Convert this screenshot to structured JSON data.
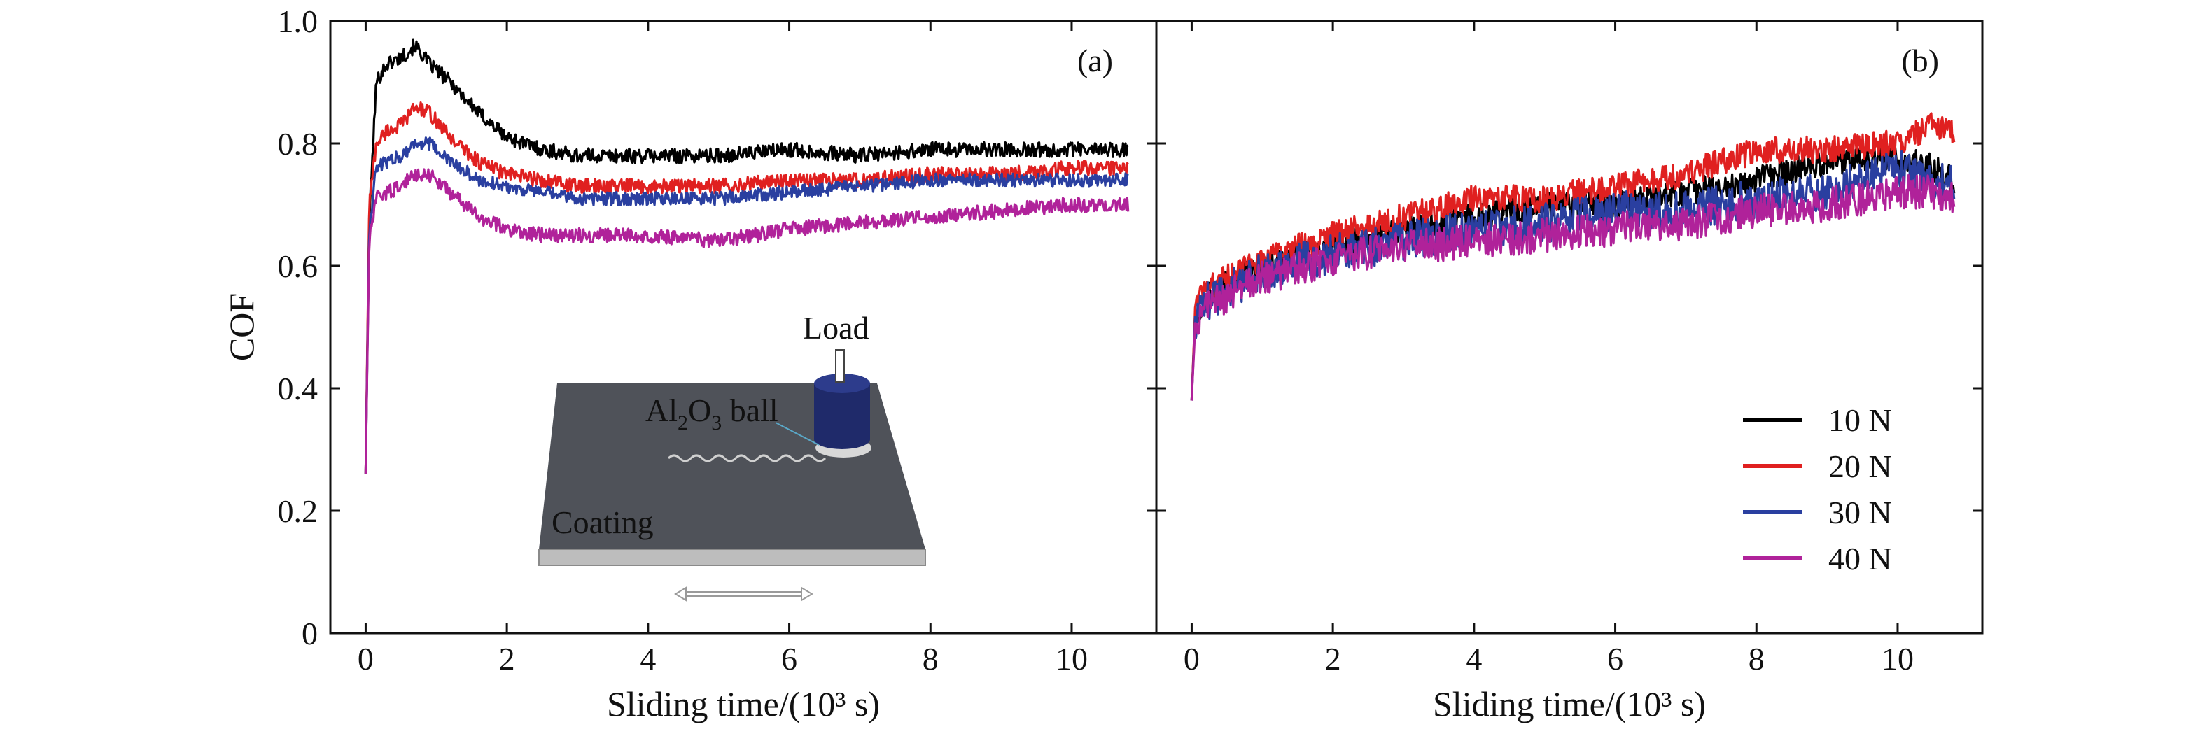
{
  "chart_data": [
    {
      "type": "line",
      "panel_label": "(a)",
      "xlabel": "Sliding time/(10³ s)",
      "ylabel": "COF",
      "xlim": [
        -0.5,
        11.2
      ],
      "ylim": [
        0,
        1.0
      ],
      "xticks": [
        0,
        2,
        4,
        6,
        8,
        10
      ],
      "yticks": [
        0,
        0.2,
        0.4,
        0.6,
        0.8,
        1.0
      ],
      "ytick_labels": [
        "0",
        "0.2",
        "0.4",
        "0.6",
        "0.8",
        "1.0"
      ],
      "grid": false,
      "series": [
        {
          "name": "10 N",
          "color": "#000000",
          "noise": 0.012,
          "x": [
            0,
            0.05,
            0.15,
            0.3,
            0.5,
            0.7,
            0.9,
            1.2,
            1.6,
            2.0,
            2.5,
            3,
            4,
            5,
            6,
            7,
            8,
            9,
            10,
            10.8
          ],
          "y": [
            0.26,
            0.67,
            0.9,
            0.93,
            0.94,
            0.96,
            0.93,
            0.9,
            0.85,
            0.81,
            0.79,
            0.78,
            0.78,
            0.78,
            0.79,
            0.78,
            0.79,
            0.79,
            0.79,
            0.79
          ]
        },
        {
          "name": "20 N",
          "color": "#e02020",
          "noise": 0.012,
          "x": [
            0,
            0.05,
            0.15,
            0.3,
            0.5,
            0.7,
            0.9,
            1.2,
            1.6,
            2.0,
            2.5,
            3,
            4,
            5,
            6,
            7,
            8,
            9,
            10,
            10.8
          ],
          "y": [
            0.26,
            0.7,
            0.8,
            0.82,
            0.83,
            0.86,
            0.85,
            0.81,
            0.77,
            0.75,
            0.74,
            0.73,
            0.73,
            0.73,
            0.74,
            0.74,
            0.75,
            0.75,
            0.76,
            0.76
          ]
        },
        {
          "name": "30 N",
          "color": "#2a3fa0",
          "noise": 0.011,
          "x": [
            0,
            0.05,
            0.15,
            0.3,
            0.5,
            0.7,
            0.9,
            1.2,
            1.6,
            2.0,
            2.5,
            3,
            4,
            5,
            6,
            7,
            8,
            9,
            10,
            10.8
          ],
          "y": [
            0.26,
            0.66,
            0.76,
            0.77,
            0.78,
            0.8,
            0.8,
            0.77,
            0.74,
            0.73,
            0.72,
            0.71,
            0.71,
            0.71,
            0.72,
            0.73,
            0.74,
            0.74,
            0.74,
            0.74
          ]
        },
        {
          "name": "40 N",
          "color": "#b0229a",
          "noise": 0.012,
          "x": [
            0,
            0.05,
            0.15,
            0.3,
            0.5,
            0.7,
            0.9,
            1.2,
            1.6,
            2.0,
            2.5,
            3,
            4,
            5,
            6,
            7,
            8,
            9,
            10,
            10.8
          ],
          "y": [
            0.26,
            0.64,
            0.71,
            0.72,
            0.73,
            0.75,
            0.75,
            0.72,
            0.68,
            0.66,
            0.65,
            0.65,
            0.65,
            0.64,
            0.66,
            0.67,
            0.68,
            0.69,
            0.7,
            0.7
          ]
        }
      ]
    },
    {
      "type": "line",
      "panel_label": "(b)",
      "xlabel": "Sliding time/(10³ s)",
      "ylabel": "",
      "xlim": [
        -0.5,
        11.2
      ],
      "ylim": [
        0,
        1.0
      ],
      "xticks": [
        0,
        2,
        4,
        6,
        8,
        10
      ],
      "yticks": [
        0,
        0.2,
        0.4,
        0.6,
        0.8,
        1.0
      ],
      "grid": false,
      "legend": "bottom-right",
      "series": [
        {
          "name": "10 N",
          "color": "#000000",
          "noise": 0.022,
          "x": [
            0,
            0.05,
            0.2,
            0.5,
            1,
            2,
            3,
            4,
            5,
            6,
            7,
            8,
            9,
            10,
            10.5,
            10.8
          ],
          "y": [
            0.38,
            0.52,
            0.55,
            0.57,
            0.6,
            0.63,
            0.66,
            0.68,
            0.7,
            0.7,
            0.72,
            0.74,
            0.77,
            0.78,
            0.76,
            0.74
          ]
        },
        {
          "name": "20 N",
          "color": "#e02020",
          "noise": 0.022,
          "x": [
            0,
            0.05,
            0.2,
            0.5,
            1,
            2,
            3,
            4,
            5,
            6,
            7,
            8,
            9,
            10,
            10.5,
            10.8
          ],
          "y": [
            0.38,
            0.53,
            0.56,
            0.58,
            0.61,
            0.65,
            0.68,
            0.71,
            0.71,
            0.73,
            0.75,
            0.79,
            0.79,
            0.8,
            0.83,
            0.82
          ]
        },
        {
          "name": "30 N",
          "color": "#2a3fa0",
          "noise": 0.032,
          "x": [
            0,
            0.05,
            0.2,
            0.5,
            1,
            2,
            3,
            4,
            5,
            6,
            7,
            8,
            9,
            10,
            10.5,
            10.8
          ],
          "y": [
            0.38,
            0.51,
            0.54,
            0.56,
            0.59,
            0.62,
            0.64,
            0.66,
            0.67,
            0.69,
            0.69,
            0.71,
            0.72,
            0.76,
            0.74,
            0.73
          ]
        },
        {
          "name": "40 N",
          "color": "#b0229a",
          "noise": 0.028,
          "x": [
            0,
            0.05,
            0.2,
            0.5,
            1,
            2,
            3,
            4,
            5,
            6,
            7,
            8,
            9,
            10,
            10.5,
            10.8
          ],
          "y": [
            0.38,
            0.5,
            0.53,
            0.55,
            0.58,
            0.61,
            0.63,
            0.64,
            0.65,
            0.66,
            0.67,
            0.69,
            0.7,
            0.72,
            0.72,
            0.71
          ]
        }
      ]
    }
  ],
  "inset": {
    "load_label": "Load",
    "ball_label_main": "Al",
    "ball_label_sub1": "2",
    "ball_label_mid": "O",
    "ball_label_sub2": "3",
    "ball_label_tail": " ball",
    "coating_label": "Coating"
  },
  "colors": {
    "plate_top": "#50535a",
    "plate_side": "#b9b9b9",
    "ball": "#1f2a6a"
  }
}
